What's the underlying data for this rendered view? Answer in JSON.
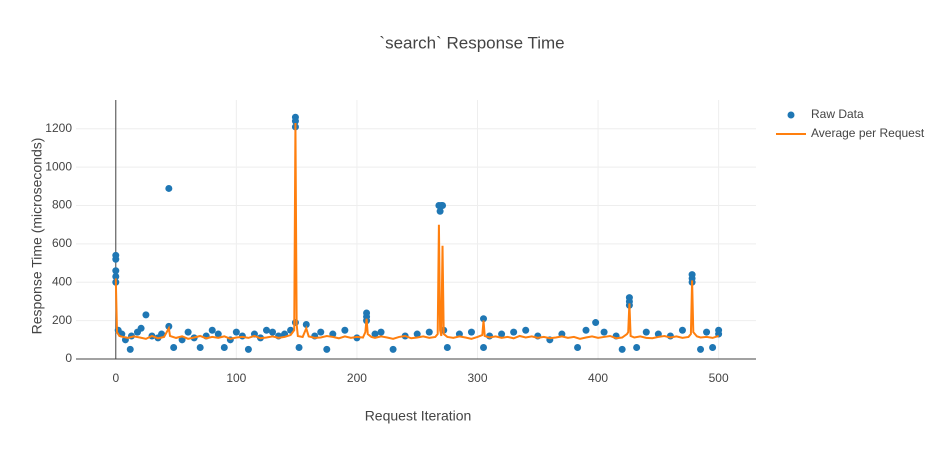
{
  "chart_data": {
    "type": "scatter",
    "title": "`search` Response Time",
    "x_label": "Request Iteration",
    "y_label": "Response Time (microseconds)",
    "xlim": [
      -33,
      531
    ],
    "ylim": [
      0,
      1350
    ],
    "xticks": [
      0,
      100,
      200,
      300,
      400,
      500
    ],
    "yticks": [
      0,
      200,
      400,
      600,
      800,
      1000,
      1200
    ],
    "grid": true,
    "legend": "right",
    "series": [
      {
        "name": "Raw Data",
        "color": "#1f77b4",
        "mode": "markers",
        "x": [
          0,
          0,
          0,
          0,
          0,
          2,
          5,
          8,
          12,
          13,
          18,
          21,
          25,
          30,
          35,
          38,
          44,
          44,
          48,
          55,
          60,
          65,
          70,
          75,
          80,
          85,
          90,
          95,
          100,
          105,
          110,
          115,
          120,
          125,
          130,
          135,
          140,
          145,
          149,
          149,
          149,
          149,
          152,
          158,
          165,
          170,
          175,
          180,
          190,
          200,
          208,
          208,
          208,
          215,
          220,
          230,
          240,
          250,
          260,
          268,
          269,
          270,
          271,
          272,
          275,
          285,
          295,
          305,
          305,
          310,
          320,
          330,
          340,
          350,
          360,
          370,
          383,
          390,
          398,
          405,
          415,
          420,
          426,
          426,
          426,
          432,
          440,
          450,
          460,
          470,
          478,
          478,
          478,
          485,
          490,
          495,
          500,
          500
        ],
        "values": [
          540,
          520,
          460,
          430,
          400,
          150,
          130,
          100,
          50,
          120,
          140,
          160,
          230,
          120,
          110,
          130,
          889,
          170,
          60,
          100,
          140,
          110,
          60,
          120,
          150,
          130,
          60,
          100,
          140,
          120,
          50,
          130,
          110,
          150,
          140,
          120,
          130,
          150,
          1260,
          1240,
          1210,
          190,
          60,
          180,
          120,
          140,
          50,
          130,
          150,
          110,
          240,
          220,
          200,
          130,
          140,
          50,
          120,
          130,
          140,
          800,
          770,
          800,
          800,
          150,
          60,
          130,
          140,
          210,
          60,
          120,
          130,
          140,
          150,
          120,
          100,
          130,
          60,
          150,
          190,
          140,
          120,
          50,
          320,
          300,
          280,
          60,
          140,
          130,
          120,
          150,
          440,
          420,
          400,
          50,
          140,
          60,
          130,
          150
        ]
      },
      {
        "name": "Average per Request",
        "color": "#ff7f0e",
        "mode": "lines",
        "x": [
          0,
          1,
          3,
          6,
          10,
          15,
          20,
          25,
          30,
          35,
          40,
          44,
          45,
          50,
          55,
          60,
          65,
          70,
          75,
          80,
          85,
          90,
          95,
          100,
          105,
          110,
          115,
          120,
          125,
          130,
          135,
          140,
          145,
          148,
          149,
          150,
          151,
          155,
          158,
          160,
          165,
          170,
          175,
          180,
          185,
          190,
          195,
          200,
          205,
          207,
          208,
          209,
          212,
          215,
          220,
          225,
          230,
          235,
          240,
          245,
          250,
          255,
          260,
          265,
          267,
          268,
          269,
          270,
          271,
          272,
          275,
          280,
          285,
          290,
          295,
          300,
          304,
          305,
          306,
          310,
          315,
          320,
          325,
          330,
          335,
          340,
          345,
          350,
          355,
          360,
          365,
          370,
          375,
          380,
          385,
          390,
          395,
          400,
          405,
          410,
          415,
          420,
          424,
          425,
          426,
          427,
          430,
          435,
          440,
          445,
          450,
          455,
          460,
          465,
          470,
          475,
          477,
          478,
          479,
          482,
          485,
          490,
          495,
          500
        ],
        "values": [
          420,
          140,
          120,
          115,
          110,
          118,
          112,
          105,
          120,
          108,
          115,
          160,
          120,
          110,
          118,
          105,
          112,
          120,
          108,
          115,
          110,
          118,
          105,
          112,
          115,
          110,
          120,
          108,
          112,
          118,
          110,
          115,
          125,
          150,
          1230,
          180,
          120,
          115,
          160,
          118,
          110,
          112,
          120,
          115,
          108,
          118,
          110,
          115,
          112,
          140,
          210,
          130,
          115,
          110,
          118,
          112,
          105,
          115,
          120,
          108,
          112,
          118,
          110,
          115,
          130,
          700,
          150,
          120,
          590,
          130,
          115,
          110,
          118,
          112,
          105,
          115,
          125,
          200,
          120,
          112,
          118,
          110,
          115,
          108,
          120,
          112,
          118,
          110,
          115,
          108,
          112,
          118,
          110,
          115,
          105,
          112,
          118,
          110,
          115,
          120,
          108,
          112,
          130,
          140,
          290,
          120,
          112,
          118,
          110,
          108,
          115,
          120,
          112,
          118,
          110,
          115,
          130,
          410,
          140,
          118,
          112,
          115,
          110,
          120
        ]
      }
    ]
  }
}
